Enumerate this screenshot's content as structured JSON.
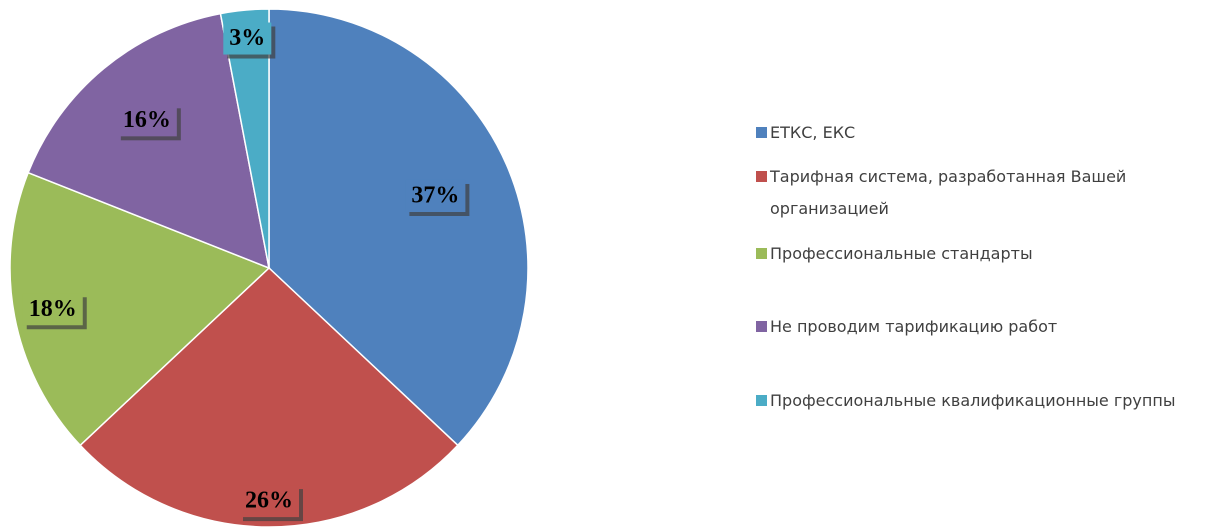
{
  "chart_data": {
    "type": "pie",
    "categories": [
      "ЕТКС, ЕКС",
      "Тарифная система, разработанная Вашей организацией",
      "Профессиональные стандарты",
      "Не проводим тарификацию работ",
      "Профессиональные квалификационные группы"
    ],
    "values": [
      37,
      26,
      18,
      16,
      3
    ],
    "value_labels": [
      "37%",
      "26%",
      "18%",
      "16%",
      "3%"
    ],
    "colors": [
      "#4f81bd",
      "#c0504d",
      "#9bbb59",
      "#8064a2",
      "#4bacc6"
    ],
    "legend": "right"
  }
}
